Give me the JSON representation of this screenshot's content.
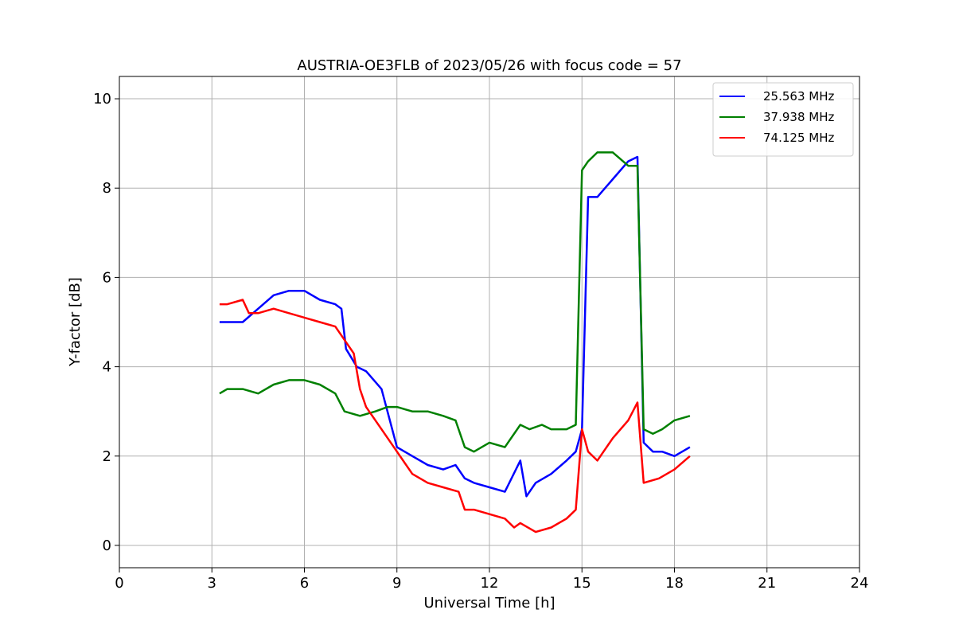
{
  "chart_data": {
    "type": "line",
    "title": "AUSTRIA-OE3FLB of 2023/05/26 with focus code = 57",
    "xlabel": "Universal Time [h]",
    "ylabel": "Y-factor [dB]",
    "xlim": [
      0,
      24
    ],
    "ylim": [
      -0.5,
      10.5
    ],
    "xticks": [
      0,
      3,
      6,
      9,
      12,
      15,
      18,
      21,
      24
    ],
    "yticks": [
      0,
      2,
      4,
      6,
      8,
      10
    ],
    "grid": true,
    "legend_position": "top-right",
    "series": [
      {
        "name": "25.563 MHz",
        "color": "#0000ff",
        "x": [
          3.25,
          3.5,
          4.0,
          4.5,
          5.0,
          5.5,
          6.0,
          6.5,
          7.0,
          7.2,
          7.35,
          7.7,
          8.0,
          8.5,
          9.0,
          9.5,
          10.0,
          10.5,
          10.9,
          11.2,
          11.5,
          12.0,
          12.5,
          13.0,
          13.2,
          13.5,
          14.0,
          14.5,
          14.8,
          15.0,
          15.2,
          15.5,
          16.0,
          16.5,
          16.8,
          17.0,
          17.3,
          17.6,
          18.0,
          18.5
        ],
        "y": [
          5.0,
          5.0,
          5.0,
          5.3,
          5.6,
          5.7,
          5.7,
          5.5,
          5.4,
          5.3,
          4.4,
          4.0,
          3.9,
          3.5,
          2.2,
          2.0,
          1.8,
          1.7,
          1.8,
          1.5,
          1.4,
          1.3,
          1.2,
          1.9,
          1.1,
          1.4,
          1.6,
          1.9,
          2.1,
          2.6,
          7.8,
          7.8,
          8.2,
          8.6,
          8.7,
          2.3,
          2.1,
          2.1,
          2.0,
          2.2
        ]
      },
      {
        "name": "37.938 MHz",
        "color": "#008000",
        "x": [
          3.25,
          3.5,
          4.0,
          4.5,
          5.0,
          5.5,
          6.0,
          6.5,
          7.0,
          7.3,
          7.8,
          8.3,
          8.7,
          9.0,
          9.5,
          10.0,
          10.5,
          10.9,
          11.2,
          11.5,
          12.0,
          12.5,
          13.0,
          13.3,
          13.7,
          14.0,
          14.5,
          14.8,
          15.0,
          15.2,
          15.5,
          16.0,
          16.5,
          16.8,
          17.0,
          17.3,
          17.6,
          18.0,
          18.5
        ],
        "y": [
          3.4,
          3.5,
          3.5,
          3.4,
          3.6,
          3.7,
          3.7,
          3.6,
          3.4,
          3.0,
          2.9,
          3.0,
          3.1,
          3.1,
          3.0,
          3.0,
          2.9,
          2.8,
          2.2,
          2.1,
          2.3,
          2.2,
          2.7,
          2.6,
          2.7,
          2.6,
          2.6,
          2.7,
          8.4,
          8.6,
          8.8,
          8.8,
          8.5,
          8.5,
          2.6,
          2.5,
          2.6,
          2.8,
          2.9
        ]
      },
      {
        "name": "74.125 MHz",
        "color": "#ff0000",
        "x": [
          3.25,
          3.5,
          4.0,
          4.2,
          4.5,
          5.0,
          5.5,
          6.0,
          6.5,
          7.0,
          7.3,
          7.6,
          7.8,
          8.0,
          8.5,
          9.0,
          9.5,
          10.0,
          10.5,
          11.0,
          11.2,
          11.5,
          12.0,
          12.5,
          12.8,
          13.0,
          13.5,
          14.0,
          14.5,
          14.8,
          15.0,
          15.2,
          15.5,
          16.0,
          16.5,
          16.8,
          17.0,
          17.5,
          18.0,
          18.5
        ],
        "y": [
          5.4,
          5.4,
          5.5,
          5.2,
          5.2,
          5.3,
          5.2,
          5.1,
          5.0,
          4.9,
          4.6,
          4.3,
          3.5,
          3.1,
          2.6,
          2.1,
          1.6,
          1.4,
          1.3,
          1.2,
          0.8,
          0.8,
          0.7,
          0.6,
          0.4,
          0.5,
          0.3,
          0.4,
          0.6,
          0.8,
          2.6,
          2.1,
          1.9,
          2.4,
          2.8,
          3.2,
          1.4,
          1.5,
          1.7,
          2.0
        ]
      }
    ]
  }
}
